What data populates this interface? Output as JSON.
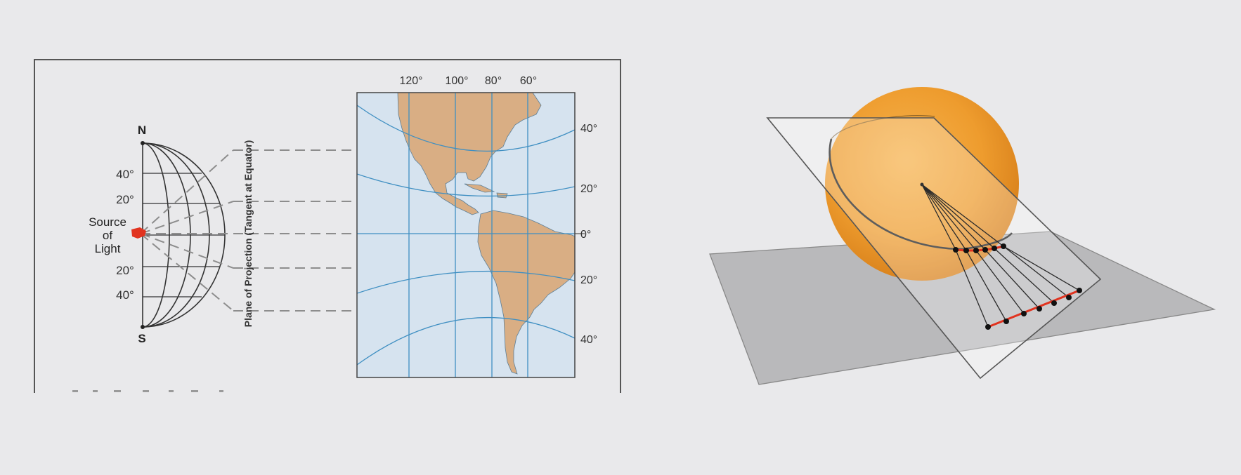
{
  "left_figure": {
    "pole_north": "N",
    "pole_south": "S",
    "source_label": [
      "Source",
      "of",
      "Light"
    ],
    "globe_lat_labels": [
      "40°",
      "20°",
      "20°",
      "40°"
    ],
    "plane_label": "Plane of Projection (Tangent at Equator)",
    "map_top_lon_labels": [
      "120°",
      "100°",
      "80°",
      "60°"
    ],
    "map_right_lat_labels": [
      "40°",
      "20°",
      "0°",
      "20°",
      "40°"
    ]
  },
  "colors": {
    "background": "#e9e9eb",
    "land": "#d9ae84",
    "ocean": "#d6e3ef",
    "grid": "#3f8fc2",
    "sphere": "#f0a033",
    "source": "#e1331f",
    "projection_points": "#e1331f",
    "plane": "#b9b9bb"
  },
  "icons": [
    "light-source-icon"
  ]
}
